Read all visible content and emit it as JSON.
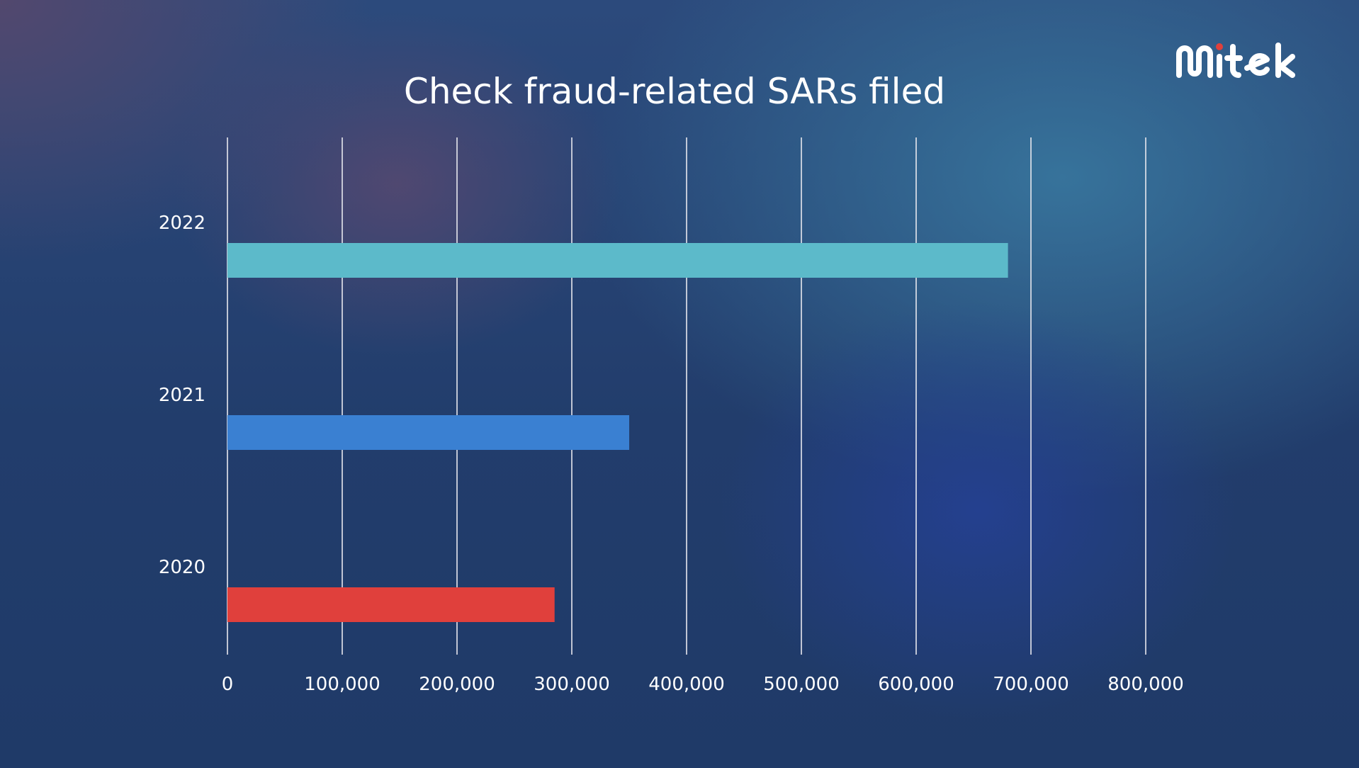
{
  "logo_text": "Mitek",
  "chart_data": {
    "type": "bar",
    "orientation": "horizontal",
    "title": "Check fraud-related SARs filed",
    "categories": [
      "2022",
      "2021",
      "2020"
    ],
    "values": [
      680000,
      350000,
      285000
    ],
    "colors": [
      "#5cbaca",
      "#3a80d2",
      "#e0403c"
    ],
    "xlim": [
      0,
      800000
    ],
    "xticks": [
      "0",
      "100,000",
      "200,000",
      "300,000",
      "400,000",
      "500,000",
      "600,000",
      "700,000",
      "800,000"
    ],
    "grid": true,
    "xlabel": "",
    "ylabel": ""
  }
}
